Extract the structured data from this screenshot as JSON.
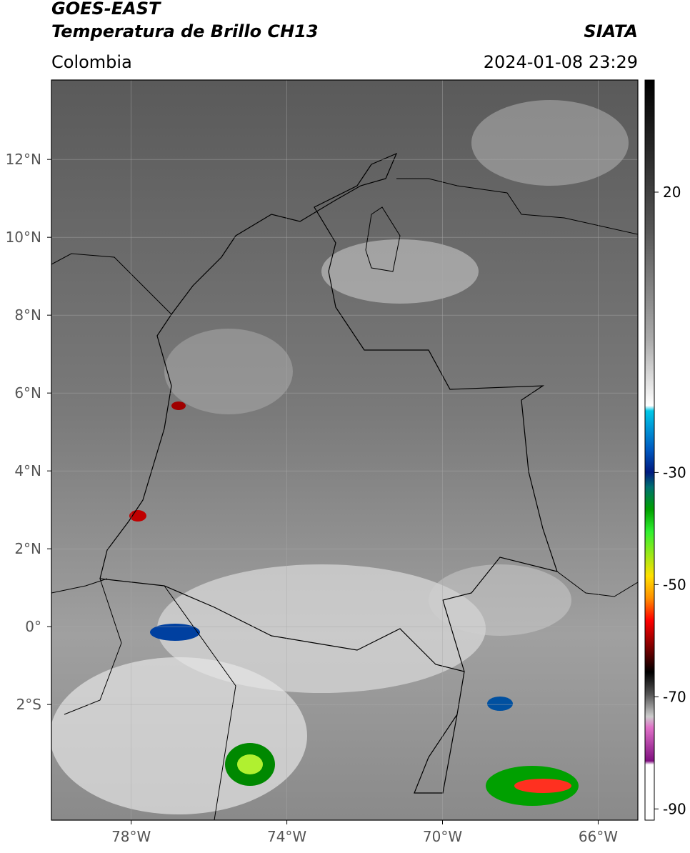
{
  "header": {
    "title": "GOES-EAST",
    "subtitle": "Temperatura de Brillo CH13",
    "source": "SIATA",
    "region": "Colombia",
    "datetime": "2024-01-08 23:29"
  },
  "map": {
    "xlim": [
      -80.05,
      -64.98
    ],
    "ylim": [
      -4.97,
      14.04
    ],
    "xticks": [
      {
        "value": -78,
        "label": "78°W"
      },
      {
        "value": -74,
        "label": "74°W"
      },
      {
        "value": -70,
        "label": "70°W"
      },
      {
        "value": -66,
        "label": "66°W"
      }
    ],
    "yticks": [
      {
        "value": 12,
        "label": "12°N"
      },
      {
        "value": 10,
        "label": "10°N"
      },
      {
        "value": 8,
        "label": "8°N"
      },
      {
        "value": 6,
        "label": "6°N"
      },
      {
        "value": 4,
        "label": "4°N"
      },
      {
        "value": 2,
        "label": "2°N"
      },
      {
        "value": 0,
        "label": "0°"
      },
      {
        "value": -2,
        "label": "2°S"
      }
    ],
    "grid": true
  },
  "colorbar": {
    "lim": [
      -92,
      40
    ],
    "ticks": [
      20,
      -30,
      -50,
      -70,
      -90
    ]
  }
}
